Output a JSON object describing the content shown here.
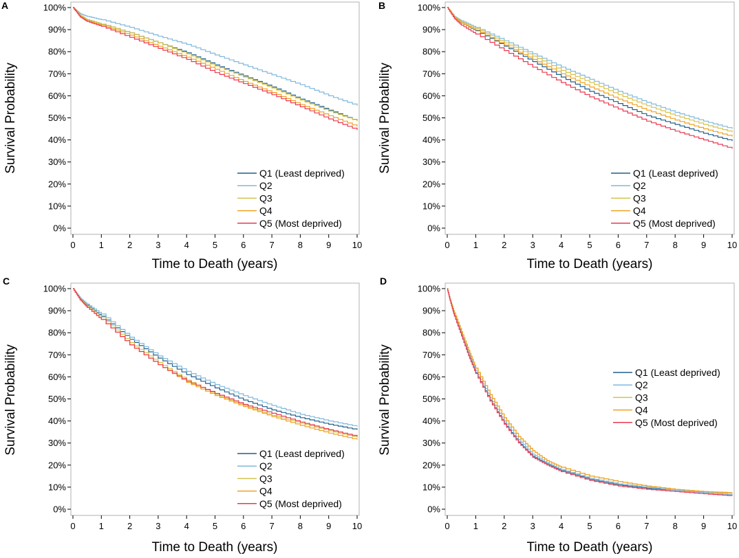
{
  "chart_data": [
    {
      "type": "line",
      "panel_label": "A",
      "xlabel": "Time to Death (years)",
      "ylabel": "Survival Probability",
      "xlim": [
        0,
        10
      ],
      "ylim": [
        0,
        100
      ],
      "x_ticks": [
        "0",
        "1",
        "2",
        "3",
        "4",
        "5",
        "6",
        "7",
        "8",
        "9",
        "10"
      ],
      "y_ticks": [
        "0%",
        "10%",
        "20%",
        "30%",
        "40%",
        "50%",
        "60%",
        "70%",
        "80%",
        "90%",
        "100%"
      ],
      "legend_position": "bottom-right",
      "x": [
        0,
        0.25,
        0.5,
        1,
        2,
        3,
        4,
        5,
        6,
        7,
        8,
        9,
        10
      ],
      "series": [
        {
          "name": "Q1 (Least deprived)",
          "color": "#1f5f8b",
          "values": [
            100,
            96.5,
            94.5,
            92.5,
            88.5,
            84,
            79.5,
            74,
            69,
            64,
            58.5,
            53.5,
            48.5
          ]
        },
        {
          "name": "Q2",
          "color": "#7fb8dc",
          "values": [
            100,
            97.3,
            96,
            94.5,
            91,
            87,
            83.3,
            78.5,
            74,
            69.5,
            65,
            60,
            55.5
          ]
        },
        {
          "name": "Q3",
          "color": "#d4c24a",
          "values": [
            100,
            96.5,
            94.5,
            92.5,
            88.5,
            84,
            79,
            73.5,
            68.5,
            63.5,
            58,
            53,
            48.5
          ]
        },
        {
          "name": "Q4",
          "color": "#f0a020",
          "values": [
            100,
            96,
            94,
            92,
            87.5,
            82.5,
            77.5,
            72,
            66.5,
            61.5,
            56,
            51,
            46
          ]
        },
        {
          "name": "Q5 (Most deprived)",
          "color": "#e8384f",
          "values": [
            100,
            95.8,
            93.7,
            91.5,
            86.5,
            81.5,
            76.5,
            70.5,
            65.5,
            60.5,
            55,
            49.5,
            44.5
          ]
        }
      ]
    },
    {
      "type": "line",
      "panel_label": "B",
      "xlabel": "Time to Death (years)",
      "ylabel": "Survival Probability",
      "xlim": [
        0,
        10
      ],
      "ylim": [
        0,
        100
      ],
      "x_ticks": [
        "0",
        "1",
        "2",
        "3",
        "4",
        "5",
        "6",
        "7",
        "8",
        "9",
        "10"
      ],
      "y_ticks": [
        "0%",
        "10%",
        "20%",
        "30%",
        "40%",
        "50%",
        "60%",
        "70%",
        "80%",
        "90%",
        "100%"
      ],
      "legend_position": "bottom-right",
      "x": [
        0,
        0.25,
        0.5,
        1,
        2,
        3,
        4,
        5,
        6,
        7,
        8,
        9,
        10
      ],
      "series": [
        {
          "name": "Q1 (Least deprived)",
          "color": "#1f5f8b",
          "values": [
            100,
            95.5,
            93,
            89.5,
            82.5,
            75.5,
            68.5,
            62,
            56.5,
            51,
            47,
            43,
            39.5
          ]
        },
        {
          "name": "Q2",
          "color": "#7fb8dc",
          "values": [
            100,
            96,
            94,
            91,
            85,
            79,
            73,
            67.5,
            62,
            57,
            52.5,
            48.5,
            45
          ]
        },
        {
          "name": "Q3",
          "color": "#d4c24a",
          "values": [
            100,
            95.8,
            93.5,
            90.5,
            84,
            78,
            71.5,
            66,
            60.5,
            55.5,
            51,
            47,
            43.5
          ]
        },
        {
          "name": "Q4",
          "color": "#f0a020",
          "values": [
            100,
            95.5,
            93,
            89.8,
            83,
            76.5,
            70,
            64,
            58.5,
            53.5,
            49,
            45,
            41.5
          ]
        },
        {
          "name": "Q5 (Most deprived)",
          "color": "#e8384f",
          "values": [
            100,
            95,
            92,
            88,
            80.5,
            73,
            66,
            59.5,
            54,
            48.5,
            44,
            40,
            36
          ]
        }
      ]
    },
    {
      "type": "line",
      "panel_label": "C",
      "xlabel": "Time to Death (years)",
      "ylabel": "Survival Probability",
      "xlim": [
        0,
        10
      ],
      "ylim": [
        0,
        100
      ],
      "x_ticks": [
        "0",
        "1",
        "2",
        "3",
        "4",
        "5",
        "6",
        "7",
        "8",
        "9",
        "10"
      ],
      "y_ticks": [
        "0%",
        "10%",
        "20%",
        "30%",
        "40%",
        "50%",
        "60%",
        "70%",
        "80%",
        "90%",
        "100%"
      ],
      "legend_position": "bottom-right",
      "x": [
        0,
        0.25,
        0.5,
        1,
        2,
        3,
        4,
        5,
        6,
        7,
        8,
        9,
        10
      ],
      "series": [
        {
          "name": "Q1 (Least deprived)",
          "color": "#1f5f8b",
          "values": [
            100,
            95.5,
            92.5,
            87.5,
            77,
            68.5,
            61,
            55,
            49.5,
            45,
            41.5,
            38.5,
            36
          ]
        },
        {
          "name": "Q2",
          "color": "#7fb8dc",
          "values": [
            100,
            95.8,
            93,
            88.5,
            78,
            69.5,
            62.5,
            56.5,
            51.5,
            47,
            43,
            40,
            37.5
          ]
        },
        {
          "name": "Q3",
          "color": "#d4c24a",
          "values": [
            100,
            95.3,
            92,
            87,
            75.5,
            66.5,
            58.5,
            52,
            47,
            42.5,
            39,
            35.5,
            32.5
          ]
        },
        {
          "name": "Q4",
          "color": "#f0a020",
          "values": [
            100,
            95,
            91.5,
            86,
            74.5,
            65.5,
            57.5,
            51.5,
            46.5,
            42,
            38,
            34.5,
            31.5
          ]
        },
        {
          "name": "Q5 (Most deprived)",
          "color": "#e8384f",
          "values": [
            100,
            95,
            91.5,
            86,
            74.5,
            65.5,
            58,
            52.5,
            47.5,
            43.5,
            39.5,
            36,
            33
          ]
        }
      ]
    },
    {
      "type": "line",
      "panel_label": "D",
      "xlabel": "Time to Death (years)",
      "ylabel": "Survival Probability",
      "xlim": [
        0,
        10
      ],
      "ylim": [
        0,
        100
      ],
      "x_ticks": [
        "0",
        "1",
        "2",
        "3",
        "4",
        "5",
        "6",
        "7",
        "8",
        "9",
        "10"
      ],
      "y_ticks": [
        "0%",
        "10%",
        "20%",
        "30%",
        "40%",
        "50%",
        "60%",
        "70%",
        "80%",
        "90%",
        "100%"
      ],
      "legend_position": "middle-right",
      "x": [
        0,
        0.1,
        0.25,
        0.5,
        0.75,
        1,
        1.5,
        2,
        2.5,
        3,
        3.5,
        4,
        5,
        6,
        7,
        8,
        9,
        10
      ],
      "series": [
        {
          "name": "Q1 (Least deprived)",
          "color": "#1f5f8b",
          "values": [
            100,
            95,
            88,
            79,
            70,
            62,
            49.5,
            39,
            30.5,
            24,
            20.5,
            17.5,
            13.5,
            11,
            9.5,
            8.5,
            7.5,
            6.5
          ]
        },
        {
          "name": "Q2",
          "color": "#7fb8dc",
          "values": [
            100,
            95,
            88,
            79.5,
            71,
            63,
            50.5,
            40,
            31.5,
            25,
            21,
            18,
            14,
            11.5,
            10,
            8.5,
            7.5,
            6.5
          ]
        },
        {
          "name": "Q3",
          "color": "#d4c24a",
          "values": [
            100,
            95,
            89,
            80.5,
            72,
            64,
            52,
            41.5,
            33,
            26.5,
            22,
            19,
            15,
            12.5,
            10.5,
            9,
            8,
            7
          ]
        },
        {
          "name": "Q4",
          "color": "#f0a020",
          "values": [
            100,
            95,
            89,
            80.5,
            72,
            64,
            52,
            41.5,
            33,
            26.5,
            22,
            19,
            15,
            12.5,
            10.5,
            9,
            8,
            7.5
          ]
        },
        {
          "name": "Q5 (Most deprived)",
          "color": "#e8384f",
          "values": [
            100,
            94.5,
            87.5,
            78.5,
            69.5,
            61.5,
            49,
            38.5,
            30,
            23.5,
            20,
            17,
            13,
            10.5,
            9,
            8,
            7,
            6
          ]
        }
      ]
    }
  ]
}
